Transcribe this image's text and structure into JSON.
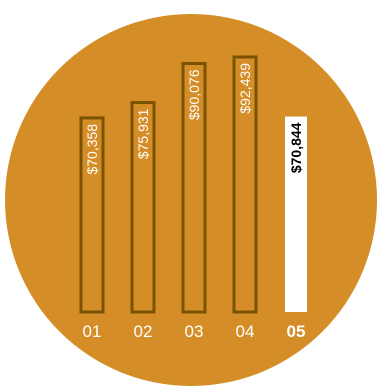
{
  "chart_data": {
    "type": "bar",
    "categories": [
      "01",
      "02",
      "03",
      "04",
      "05"
    ],
    "values": [
      70358,
      75931,
      90076,
      92439,
      70844
    ],
    "value_labels": [
      "$70,358",
      "$75,931",
      "$90,076",
      "$92,439",
      "$70,844"
    ],
    "highlighted_index": 4,
    "title": "",
    "xlabel": "",
    "ylabel": "",
    "grid": false,
    "legend": "none"
  },
  "colors": {
    "background_circle": "#d48d27",
    "bar_outline": "#7a5200",
    "highlight_fill": "#ffffff",
    "highlight_text": "#000000",
    "label_text": "#ffffff"
  }
}
